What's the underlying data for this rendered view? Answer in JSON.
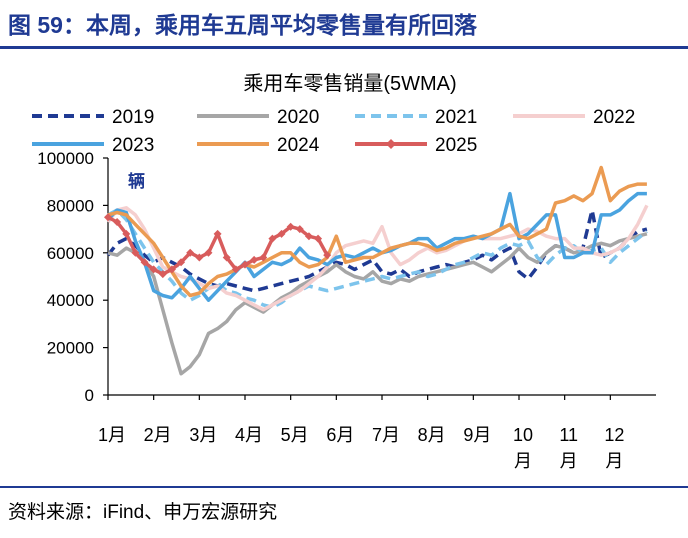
{
  "figure": {
    "title": "图 59：本周，乘用车五周平均零售量有所回落",
    "source": "资料来源：iFind、申万宏源研究"
  },
  "chart_data": {
    "type": "line",
    "title": "乘用车零售销量(5WMA)",
    "unit_label": "辆",
    "ylim": [
      0,
      100000
    ],
    "yticks": [
      0,
      20000,
      40000,
      60000,
      80000,
      100000
    ],
    "xlim": [
      0,
      12
    ],
    "xticks": [
      {
        "pos": 0,
        "label": "1月"
      },
      {
        "pos": 1,
        "label": "2月"
      },
      {
        "pos": 2,
        "label": "3月"
      },
      {
        "pos": 3,
        "label": "4月"
      },
      {
        "pos": 4,
        "label": "5月"
      },
      {
        "pos": 5,
        "label": "6月"
      },
      {
        "pos": 6,
        "label": "7月"
      },
      {
        "pos": 7,
        "label": "8月"
      },
      {
        "pos": 8,
        "label": "9月"
      },
      {
        "pos": 9,
        "label": "10\n月"
      },
      {
        "pos": 10,
        "label": "11\n月"
      },
      {
        "pos": 11,
        "label": "12\n月"
      }
    ],
    "series": [
      {
        "name": "2019",
        "color": "#1f3a93",
        "dash": "10,6",
        "width": 3.5,
        "marker": false,
        "x": [
          0,
          0.2,
          0.4,
          0.6,
          0.8,
          1,
          1.2,
          1.4,
          1.6,
          1.8,
          2,
          2.2,
          2.4,
          2.6,
          2.8,
          3,
          3.2,
          3.4,
          3.6,
          3.8,
          4,
          4.2,
          4.4,
          4.6,
          4.8,
          5,
          5.2,
          5.4,
          5.6,
          5.8,
          6,
          6.2,
          6.4,
          6.6,
          6.8,
          7,
          7.2,
          7.4,
          7.6,
          7.8,
          8,
          8.2,
          8.4,
          8.6,
          8.8,
          9,
          9.2,
          9.4,
          9.6,
          9.8,
          10,
          10.2,
          10.4,
          10.6,
          10.8,
          11,
          11.2,
          11.4,
          11.6,
          11.8
        ],
        "y": [
          59000,
          64000,
          66000,
          63000,
          59000,
          56000,
          58000,
          56000,
          54000,
          51000,
          49000,
          47000,
          46000,
          47000,
          46000,
          45000,
          44000,
          45000,
          46000,
          47000,
          48000,
          49000,
          50000,
          52000,
          54000,
          56000,
          55000,
          53000,
          55000,
          57000,
          52000,
          51000,
          53000,
          50000,
          52000,
          53000,
          54000,
          55000,
          54000,
          56000,
          57000,
          59000,
          57000,
          60000,
          62000,
          52000,
          49000,
          54000,
          60000,
          63000,
          62000,
          60000,
          62000,
          78000,
          58000,
          60000,
          62000,
          66000,
          69000,
          70000
        ]
      },
      {
        "name": "2020",
        "color": "#a6a6a6",
        "dash": "",
        "width": 3.5,
        "marker": false,
        "x": [
          0,
          0.2,
          0.4,
          0.6,
          0.8,
          1,
          1.2,
          1.4,
          1.6,
          1.8,
          2,
          2.2,
          2.4,
          2.6,
          2.8,
          3,
          3.2,
          3.4,
          3.6,
          3.8,
          4,
          4.2,
          4.4,
          4.6,
          4.8,
          5,
          5.2,
          5.4,
          5.6,
          5.8,
          6,
          6.2,
          6.4,
          6.6,
          6.8,
          7,
          7.2,
          7.4,
          7.6,
          7.8,
          8,
          8.2,
          8.4,
          8.6,
          8.8,
          9,
          9.2,
          9.4,
          9.6,
          9.8,
          10,
          10.2,
          10.4,
          10.6,
          10.8,
          11,
          11.2,
          11.4,
          11.6,
          11.8
        ],
        "y": [
          60000,
          59000,
          62000,
          60000,
          56000,
          50000,
          36000,
          22000,
          9000,
          12000,
          17000,
          26000,
          28000,
          31000,
          36000,
          39000,
          37000,
          35000,
          38000,
          41000,
          43000,
          46000,
          48000,
          50000,
          52000,
          55000,
          52000,
          50000,
          49000,
          52000,
          48000,
          47000,
          49000,
          48000,
          50000,
          51000,
          52000,
          53000,
          54000,
          55000,
          56000,
          54000,
          52000,
          55000,
          58000,
          62000,
          58000,
          56000,
          60000,
          63000,
          62000,
          60000,
          61000,
          63000,
          64000,
          63000,
          65000,
          66000,
          67000,
          68000
        ]
      },
      {
        "name": "2021",
        "color": "#7dc4ec",
        "dash": "10,6",
        "width": 3.5,
        "marker": false,
        "x": [
          0,
          0.2,
          0.4,
          0.6,
          0.8,
          1,
          1.2,
          1.4,
          1.6,
          1.8,
          2,
          2.2,
          2.4,
          2.6,
          2.8,
          3,
          3.2,
          3.4,
          3.6,
          3.8,
          4,
          4.2,
          4.4,
          4.6,
          4.8,
          5,
          5.2,
          5.4,
          5.6,
          5.8,
          6,
          6.2,
          6.4,
          6.6,
          6.8,
          7,
          7.2,
          7.4,
          7.6,
          7.8,
          8,
          8.2,
          8.4,
          8.6,
          8.8,
          9,
          9.2,
          9.4,
          9.6,
          9.8,
          10,
          10.2,
          10.4,
          10.6,
          10.8,
          11,
          11.2,
          11.4,
          11.6,
          11.8
        ],
        "y": [
          76000,
          78000,
          74000,
          68000,
          62000,
          56000,
          52000,
          48000,
          43000,
          40000,
          42000,
          45000,
          47000,
          44000,
          43000,
          41000,
          40000,
          38000,
          37000,
          39000,
          42000,
          44000,
          46000,
          45000,
          44000,
          45000,
          46000,
          47000,
          48000,
          49000,
          50000,
          49000,
          50000,
          51000,
          52000,
          50000,
          51000,
          53000,
          55000,
          56000,
          58000,
          60000,
          59000,
          62000,
          64000,
          63000,
          65000,
          58000,
          55000,
          59000,
          62000,
          63000,
          60000,
          61000,
          62000,
          56000,
          60000,
          63000,
          66000,
          69000
        ]
      },
      {
        "name": "2022",
        "color": "#f5cfcf",
        "dash": "",
        "width": 3.5,
        "marker": false,
        "x": [
          0,
          0.2,
          0.4,
          0.6,
          0.8,
          1,
          1.2,
          1.4,
          1.6,
          1.8,
          2,
          2.2,
          2.4,
          2.6,
          2.8,
          3,
          3.2,
          3.4,
          3.6,
          3.8,
          4,
          4.2,
          4.4,
          4.6,
          4.8,
          5,
          5.2,
          5.4,
          5.6,
          5.8,
          6,
          6.2,
          6.4,
          6.6,
          6.8,
          7,
          7.2,
          7.4,
          7.6,
          7.8,
          8,
          8.2,
          8.4,
          8.6,
          8.8,
          9,
          9.2,
          9.4,
          9.6,
          9.8,
          10,
          10.2,
          10.4,
          10.6,
          10.8,
          11,
          11.2,
          11.4,
          11.6,
          11.8
        ],
        "y": [
          73000,
          78000,
          79000,
          76000,
          70000,
          62000,
          54000,
          52000,
          50000,
          49000,
          47000,
          45000,
          46000,
          43000,
          42000,
          40000,
          38000,
          36000,
          38000,
          40000,
          42000,
          44000,
          47000,
          50000,
          54000,
          60000,
          63000,
          64000,
          65000,
          64000,
          71000,
          60000,
          55000,
          57000,
          60000,
          62000,
          60000,
          61000,
          63000,
          65000,
          67000,
          66000,
          66000,
          66000,
          67000,
          68000,
          70000,
          69000,
          67000,
          66000,
          66000,
          62000,
          62000,
          60000,
          59000,
          60000,
          62000,
          66000,
          72000,
          80000
        ]
      },
      {
        "name": "2023",
        "color": "#4aa3df",
        "dash": "",
        "width": 3.5,
        "marker": false,
        "x": [
          0,
          0.2,
          0.4,
          0.6,
          0.8,
          1,
          1.2,
          1.4,
          1.6,
          1.8,
          2,
          2.2,
          2.4,
          2.6,
          2.8,
          3,
          3.2,
          3.4,
          3.6,
          3.8,
          4,
          4.2,
          4.4,
          4.6,
          4.8,
          5,
          5.2,
          5.4,
          5.6,
          5.8,
          6,
          6.2,
          6.4,
          6.6,
          6.8,
          7,
          7.2,
          7.4,
          7.6,
          7.8,
          8,
          8.2,
          8.4,
          8.6,
          8.8,
          9,
          9.2,
          9.4,
          9.6,
          9.8,
          10,
          10.2,
          10.4,
          10.6,
          10.8,
          11,
          11.2,
          11.4,
          11.6,
          11.8
        ],
        "y": [
          74000,
          78000,
          77000,
          65000,
          56000,
          44000,
          42000,
          41000,
          45000,
          50000,
          45000,
          40000,
          44000,
          48000,
          52000,
          56000,
          50000,
          53000,
          56000,
          55000,
          57000,
          62000,
          58000,
          57000,
          55000,
          58000,
          59000,
          58000,
          60000,
          62000,
          60000,
          61000,
          63000,
          64000,
          66000,
          66000,
          62000,
          64000,
          66000,
          66000,
          67000,
          66000,
          68000,
          70000,
          85000,
          66000,
          68000,
          72000,
          76000,
          76000,
          58000,
          58000,
          60000,
          60000,
          76000,
          76000,
          78000,
          82000,
          85000,
          85000
        ]
      },
      {
        "name": "2024",
        "color": "#eb9b52",
        "dash": "",
        "width": 3.5,
        "marker": false,
        "x": [
          0,
          0.2,
          0.4,
          0.6,
          0.8,
          1,
          1.2,
          1.4,
          1.6,
          1.8,
          2,
          2.2,
          2.4,
          2.6,
          2.8,
          3,
          3.2,
          3.4,
          3.6,
          3.8,
          4,
          4.2,
          4.4,
          4.6,
          4.8,
          5,
          5.2,
          5.4,
          5.6,
          5.8,
          6,
          6.2,
          6.4,
          6.6,
          6.8,
          7,
          7.2,
          7.4,
          7.6,
          7.8,
          8,
          8.2,
          8.4,
          8.6,
          8.8,
          9,
          9.2,
          9.4,
          9.6,
          9.8,
          10,
          10.2,
          10.4,
          10.6,
          10.8,
          11,
          11.2,
          11.4,
          11.6,
          11.8
        ],
        "y": [
          76000,
          77000,
          76000,
          72000,
          68000,
          64000,
          58000,
          52000,
          46000,
          42000,
          43000,
          47000,
          50000,
          51000,
          53000,
          55000,
          54000,
          56000,
          58000,
          60000,
          60000,
          56000,
          54000,
          55000,
          58000,
          67000,
          56000,
          57000,
          58000,
          58000,
          60000,
          62000,
          63000,
          64000,
          64000,
          63000,
          61000,
          62000,
          64000,
          65000,
          66000,
          67000,
          68000,
          70000,
          72000,
          67000,
          66000,
          68000,
          70000,
          81000,
          82000,
          84000,
          82000,
          85000,
          96000,
          82000,
          86000,
          88000,
          89000,
          89000
        ]
      },
      {
        "name": "2025",
        "color": "#d85c5c",
        "dash": "",
        "width": 3.5,
        "marker": true,
        "x": [
          0,
          0.2,
          0.4,
          0.6,
          0.8,
          1,
          1.2,
          1.4,
          1.6,
          1.8,
          2,
          2.2,
          2.4,
          2.6,
          2.8,
          3,
          3.2,
          3.4,
          3.6,
          3.8,
          4,
          4.2,
          4.4,
          4.6,
          4.8
        ],
        "y": [
          75000,
          73000,
          68000,
          60000,
          56000,
          53000,
          51000,
          53000,
          56000,
          60000,
          58000,
          60000,
          68000,
          58000,
          53000,
          55000,
          57000,
          58000,
          66000,
          68000,
          71000,
          70000,
          67000,
          66000,
          59000
        ]
      }
    ]
  }
}
